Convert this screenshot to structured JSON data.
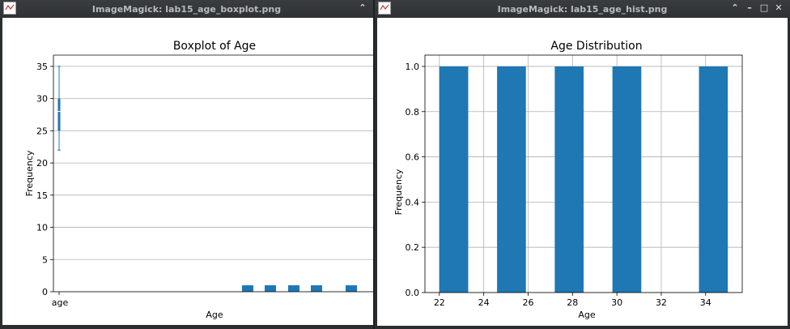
{
  "windows": {
    "left": {
      "title": "ImageMagick: lab15_age_boxplot.png",
      "controls": {
        "collapse": "⌃"
      }
    },
    "right": {
      "title": "ImageMagick: lab15_age_hist.png",
      "controls": {
        "collapse": "⌃",
        "minimize": "–",
        "maximize": "□",
        "close": "✕"
      }
    }
  },
  "chart_data": [
    {
      "type": "bar",
      "title": "Boxplot of Age",
      "xlabel": "Age",
      "ylabel": "Frequency",
      "ylim": [
        0,
        36.75
      ],
      "yticks": [
        0,
        5,
        10,
        15,
        20,
        25,
        30,
        35
      ],
      "xtick_labels": [
        "age"
      ],
      "grid": "horizontal",
      "colors": {
        "bar": "#1f77b4",
        "box": "#1f77b4"
      },
      "boxplot": {
        "category": "age",
        "min": 22,
        "q1": 25,
        "median": 28,
        "q3": 30,
        "max": 35
      },
      "hist_overlay": {
        "values": [
          1,
          1,
          1,
          1,
          1
        ]
      }
    },
    {
      "type": "bar",
      "title": "Age Distribution",
      "xlabel": "Age",
      "ylabel": "Frequency",
      "xlim": [
        21.35,
        35.65
      ],
      "ylim": [
        0,
        1.05
      ],
      "xticks": [
        22,
        24,
        26,
        28,
        30,
        32,
        34
      ],
      "yticks": [
        0.0,
        0.2,
        0.4,
        0.6,
        0.8,
        1.0
      ],
      "grid": true,
      "colors": {
        "bar": "#1f77b4"
      },
      "bins": [
        {
          "x0": 22.0,
          "x1": 23.3,
          "value": 1
        },
        {
          "x0": 24.6,
          "x1": 25.9,
          "value": 1
        },
        {
          "x0": 27.2,
          "x1": 28.5,
          "value": 1
        },
        {
          "x0": 29.8,
          "x1": 31.1,
          "value": 1
        },
        {
          "x0": 33.7,
          "x1": 35.0,
          "value": 1
        }
      ]
    }
  ]
}
